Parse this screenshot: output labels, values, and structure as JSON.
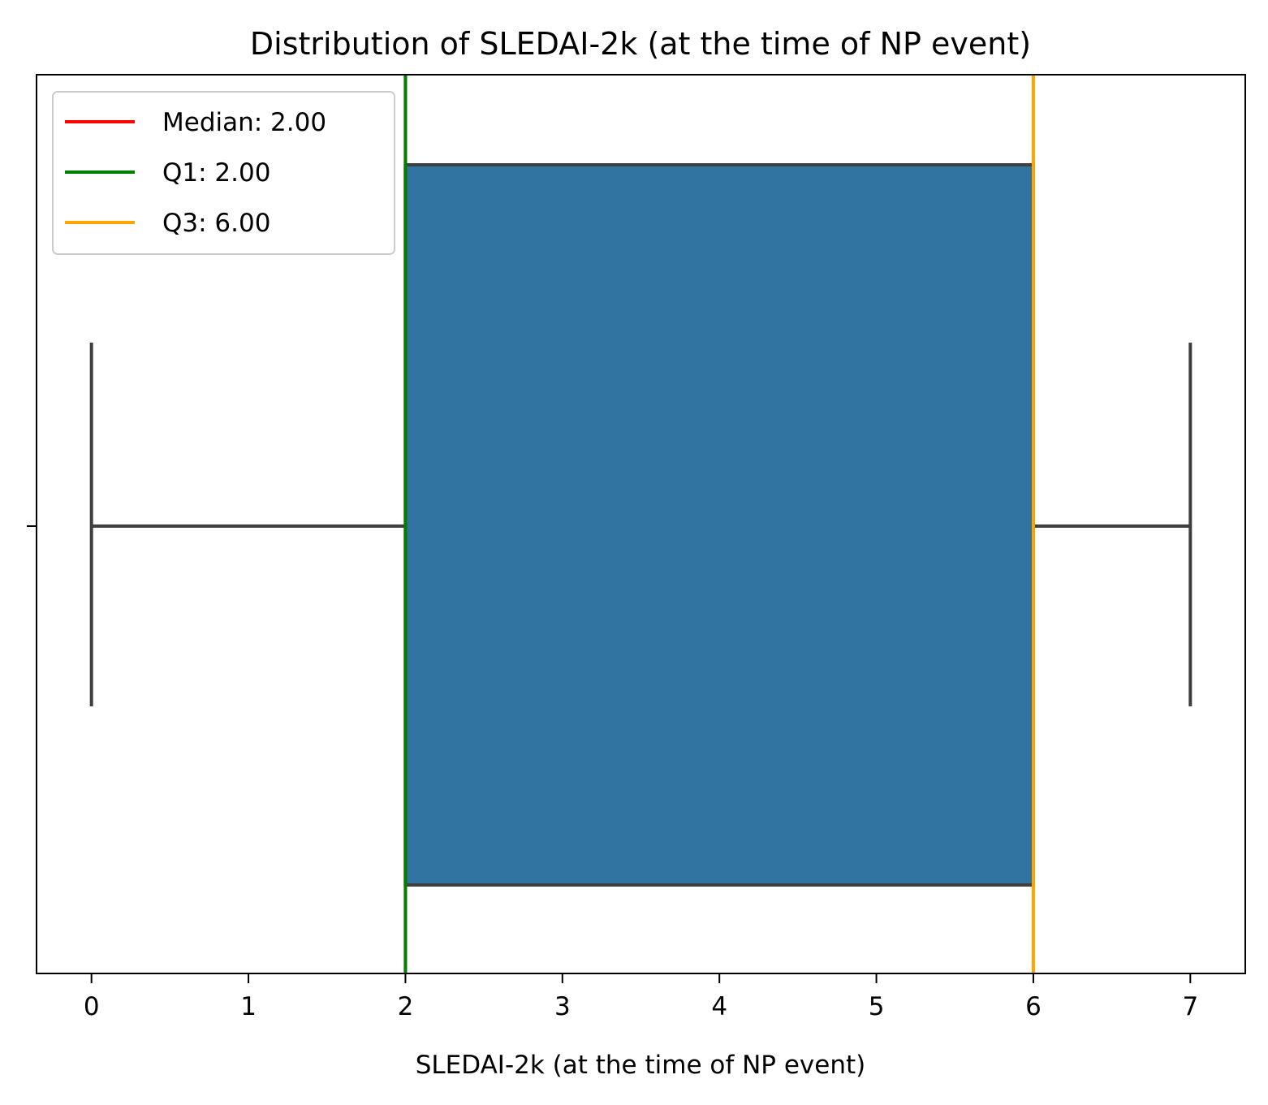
{
  "chart_data": {
    "type": "box",
    "title": "Distribution of SLEDAI-2k (at the time of NP event)",
    "xlabel": "SLEDAI-2k (at the time of NP event)",
    "ylabel": "",
    "xlim": [
      -0.35,
      7.35
    ],
    "xticks": [
      "0",
      "1",
      "2",
      "3",
      "4",
      "5",
      "6",
      "7"
    ],
    "box": {
      "min": 0,
      "q1": 2,
      "median": 2,
      "q3": 6,
      "max": 7,
      "color": "#3274a1",
      "edge_color": "#3f3f3f"
    },
    "reference_lines": [
      {
        "label": "Median: 2.00",
        "value": 2,
        "color": "#ff0000"
      },
      {
        "label": "Q1: 2.00",
        "value": 2,
        "color": "#008000"
      },
      {
        "label": "Q3: 6.00",
        "value": 6,
        "color": "#ffa500"
      }
    ],
    "legend": "top-left",
    "grid": false
  }
}
